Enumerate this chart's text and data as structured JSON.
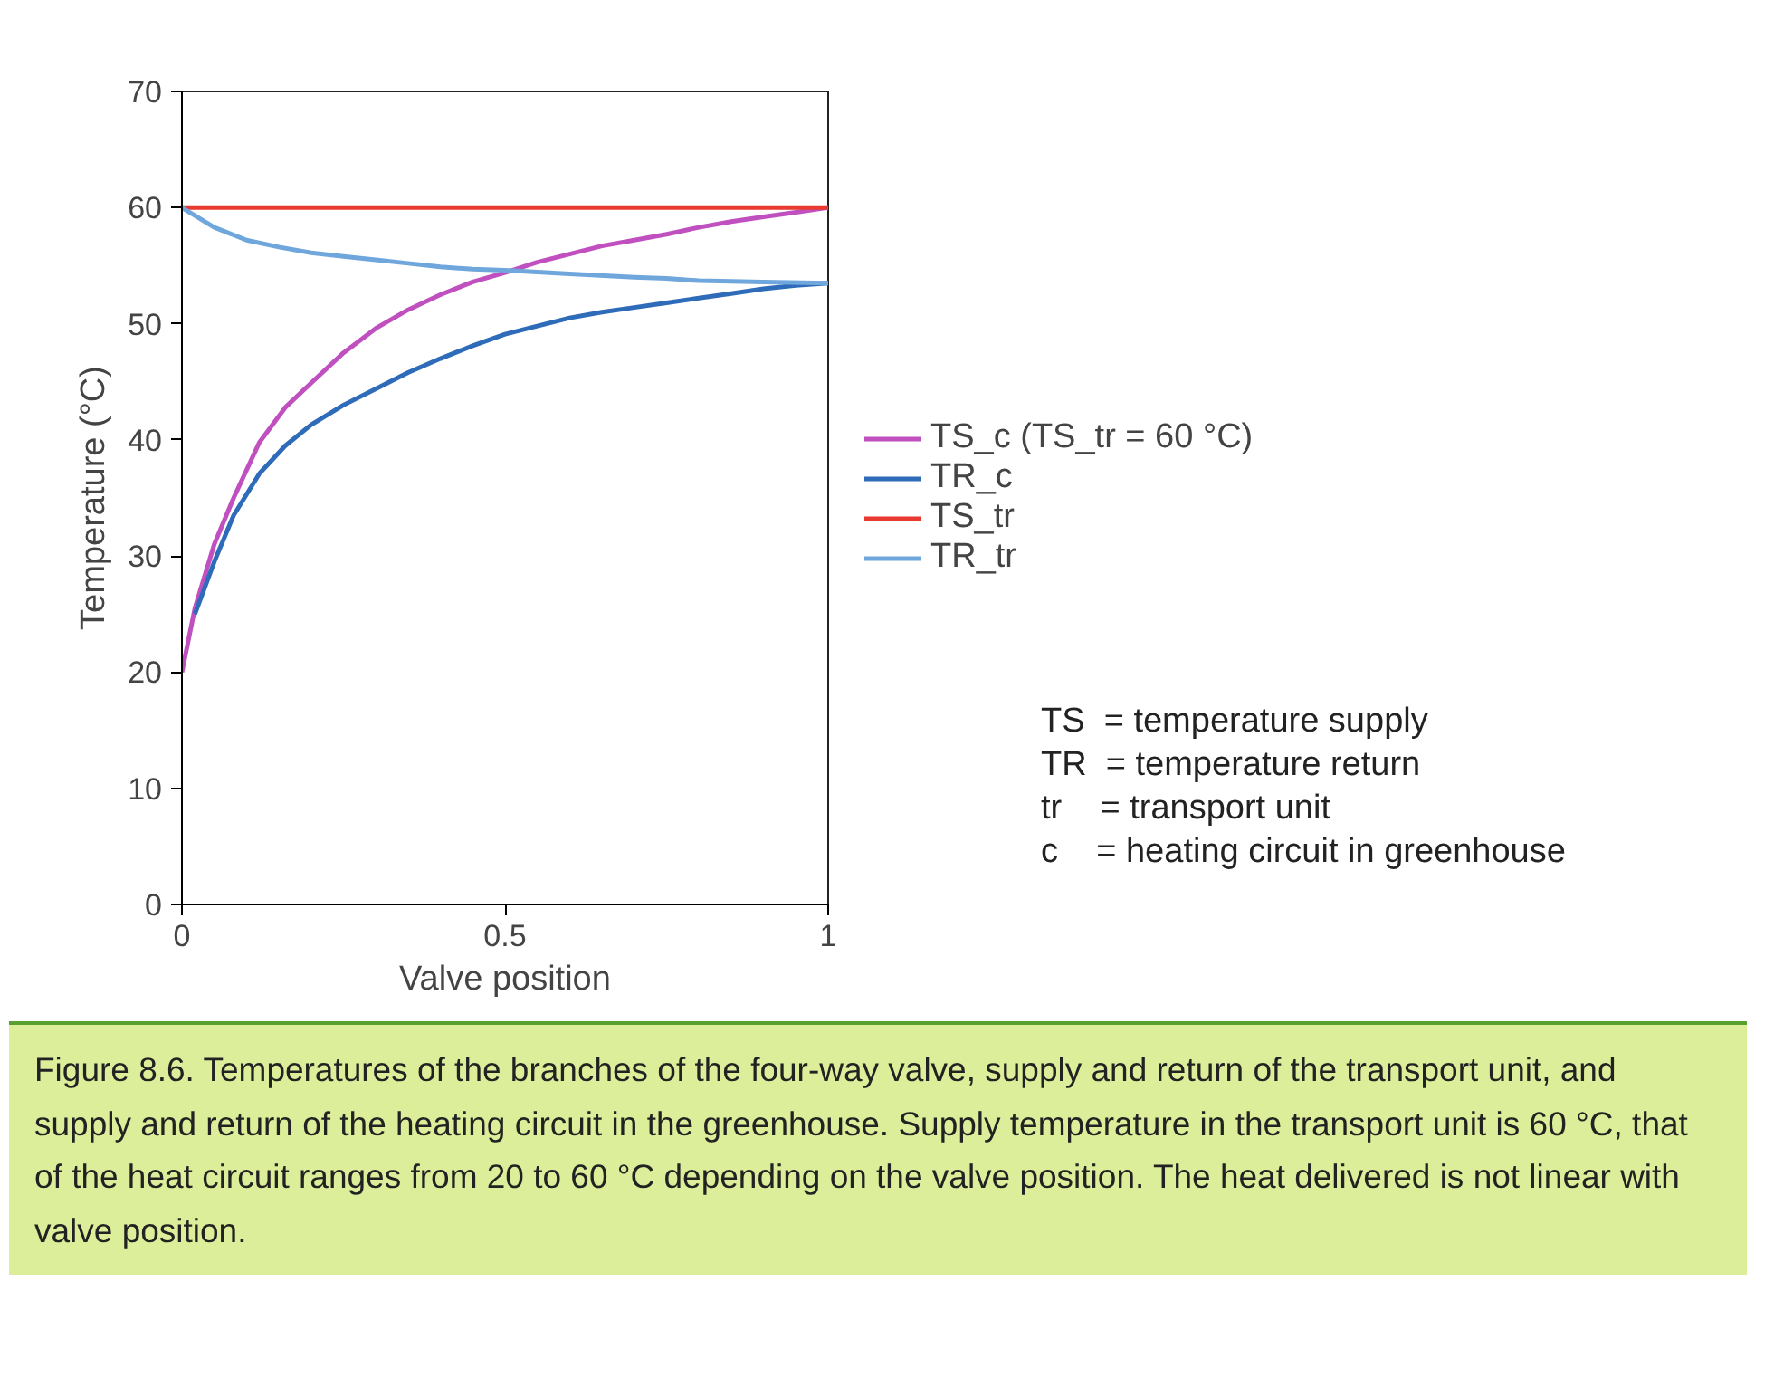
{
  "chart_data": {
    "type": "line",
    "xlabel": "Valve position",
    "ylabel": "Temperature (°C)",
    "xlim": [
      0,
      1
    ],
    "ylim": [
      0,
      70
    ],
    "xticks": [
      0,
      0.5,
      1
    ],
    "yticks": [
      0,
      10,
      20,
      30,
      40,
      50,
      60,
      70
    ],
    "grid": false,
    "legend": "right",
    "marker": "none",
    "line_style": "solid",
    "series": [
      {
        "name": "TS_c (TS_tr = 60 °C)",
        "color": "#c050c0",
        "x": [
          0,
          0.02,
          0.05,
          0.08,
          0.12,
          0.16,
          0.2,
          0.25,
          0.3,
          0.35,
          0.4,
          0.45,
          0.5,
          0.55,
          0.6,
          0.65,
          0.7,
          0.75,
          0.8,
          0.85,
          0.9,
          0.95,
          1.0
        ],
        "values": [
          20,
          25.5,
          31,
          35,
          39.8,
          42.8,
          44.9,
          47.5,
          49.6,
          51.2,
          52.5,
          53.6,
          54.4,
          55.3,
          56,
          56.7,
          57.2,
          57.7,
          58.3,
          58.8,
          59.2,
          59.6,
          60
        ]
      },
      {
        "name": "TR_c",
        "color": "#2e6bb8",
        "x": [
          0.02,
          0.05,
          0.08,
          0.12,
          0.16,
          0.2,
          0.25,
          0.3,
          0.35,
          0.4,
          0.45,
          0.5,
          0.55,
          0.6,
          0.65,
          0.7,
          0.75,
          0.8,
          0.85,
          0.9,
          0.95,
          1.0
        ],
        "values": [
          25,
          29.5,
          33.5,
          37.1,
          39.5,
          41.3,
          43,
          44.4,
          45.8,
          47,
          48.1,
          49.1,
          49.8,
          50.5,
          51,
          51.4,
          51.8,
          52.2,
          52.6,
          53,
          53.3,
          53.5
        ]
      },
      {
        "name": "TS_tr",
        "color": "#e83a30",
        "x": [
          0,
          1
        ],
        "values": [
          60,
          60
        ]
      },
      {
        "name": "TR_tr",
        "color": "#6fa7dc",
        "x": [
          0,
          0.05,
          0.1,
          0.15,
          0.2,
          0.25,
          0.3,
          0.35,
          0.4,
          0.45,
          0.5,
          0.6,
          0.7,
          0.75,
          0.8,
          0.9,
          1.0
        ],
        "values": [
          60,
          58.3,
          57.2,
          56.6,
          56.1,
          55.8,
          55.5,
          55.2,
          54.9,
          54.7,
          54.6,
          54.3,
          54,
          53.9,
          53.7,
          53.6,
          53.5
        ]
      }
    ],
    "annotations": [
      "TS  = temperature supply",
      "TR  = temperature return",
      "tr    = transport unit",
      "c     = heating circuit in greenhouse",
      "Figure 8.6. Temperatures of the branches of the four-way valve, supply and return of the transport unit, and supply and return of the heating circuit in the greenhouse. Supply temperature in the transport unit is 60 °C, that of the heat circuit ranges from 20 to 60 °C depending on the valve position. The heat delivered is not linear with valve position."
    ]
  }
}
